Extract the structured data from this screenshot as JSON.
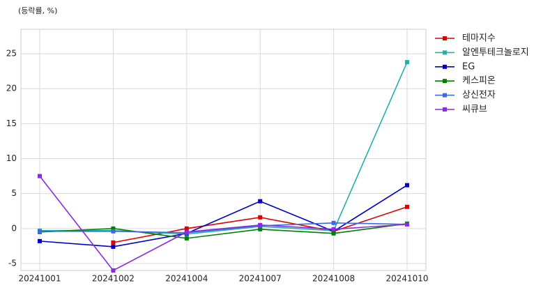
{
  "chart_data": {
    "type": "line",
    "annotation": "(등락률, %)",
    "categories": [
      "20241001",
      "20241002",
      "20241004",
      "20241007",
      "20241008",
      "20241010"
    ],
    "series": [
      {
        "name": "테마지수",
        "color": "#e00000",
        "values": [
          null,
          -2.0,
          0.0,
          1.6,
          -0.4,
          3.1
        ]
      },
      {
        "name": "알엔투테크놀로지",
        "color": "#20b2aa",
        "values": [
          -0.3,
          -0.3,
          -0.8,
          0.3,
          -0.3,
          23.8
        ]
      },
      {
        "name": "EG",
        "color": "#0000cd",
        "values": [
          -1.8,
          -2.6,
          -0.7,
          3.9,
          -0.4,
          6.2
        ]
      },
      {
        "name": "케스피온",
        "color": "#008000",
        "values": [
          -0.5,
          0.0,
          -1.4,
          -0.1,
          -0.7,
          0.7
        ]
      },
      {
        "name": "상신전자",
        "color": "#4169e1",
        "values": [
          -0.4,
          -0.4,
          -0.6,
          0.4,
          0.8,
          0.6
        ]
      },
      {
        "name": "씨큐브",
        "color": "#8a2be2",
        "values": [
          7.5,
          -6.0,
          -0.5,
          0.5,
          -0.1,
          0.6
        ]
      }
    ],
    "ylim": [
      -6,
      28.5
    ],
    "yticks": [
      -5,
      0,
      5,
      10,
      15,
      20,
      25
    ],
    "grid": true,
    "legend": "outside-right"
  }
}
